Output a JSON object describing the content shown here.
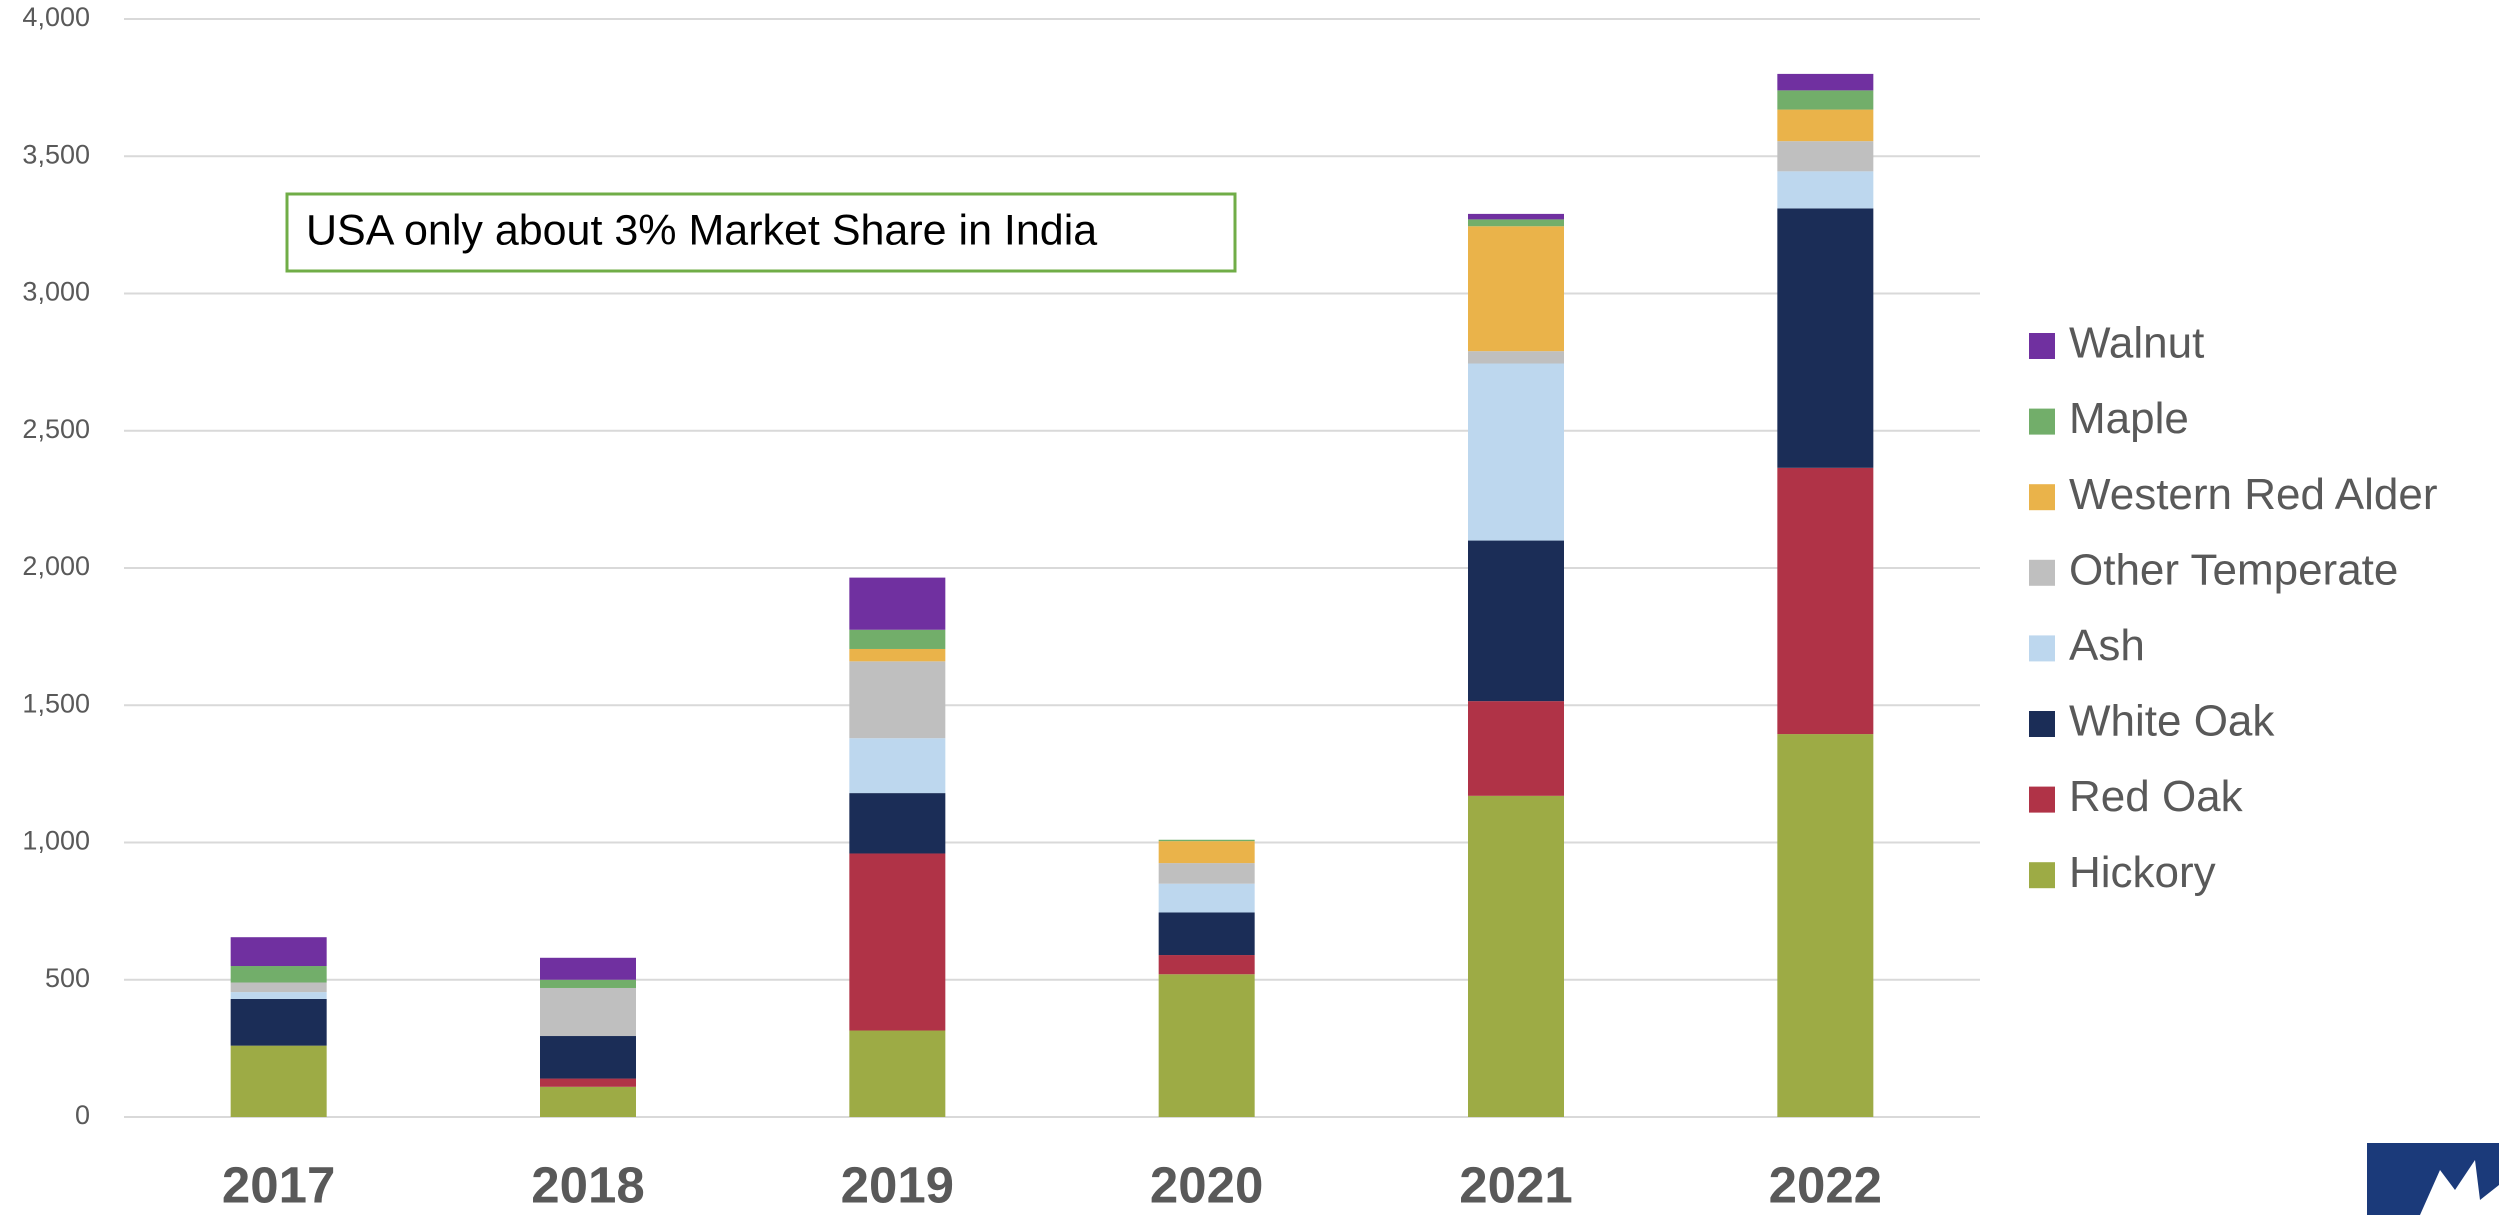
{
  "chart_data": {
    "type": "stacked_bar",
    "annotation": "USA only about 3% Market Share in India",
    "categories": [
      "2017",
      "2018",
      "2019",
      "2020",
      "2021",
      "2022"
    ],
    "series": [
      {
        "name": "Hickory",
        "color": "#9dab45",
        "values": [
          260,
          110,
          315,
          520,
          1170,
          1395
        ]
      },
      {
        "name": "Red Oak",
        "color": "#b03347",
        "values": [
          0,
          30,
          645,
          70,
          345,
          970
        ]
      },
      {
        "name": "White Oak",
        "color": "#1b2d57",
        "values": [
          170,
          155,
          220,
          155,
          585,
          945
        ]
      },
      {
        "name": "Ash",
        "color": "#bdd7ee",
        "values": [
          25,
          0,
          200,
          105,
          645,
          135
        ]
      },
      {
        "name": "Other Temperate",
        "color": "#bfbfbf",
        "values": [
          35,
          175,
          280,
          75,
          45,
          110
        ]
      },
      {
        "name": "Western Red Alder",
        "color": "#eab34a",
        "values": [
          0,
          0,
          45,
          80,
          455,
          115
        ]
      },
      {
        "name": "Maple",
        "color": "#72ae6a",
        "values": [
          60,
          30,
          70,
          5,
          25,
          70
        ]
      },
      {
        "name": "Walnut",
        "color": "#7030a0",
        "values": [
          105,
          80,
          190,
          0,
          20,
          60
        ]
      }
    ],
    "ylim": [
      0,
      4000
    ],
    "yticks": [
      0,
      500,
      {
        "value": 1000,
        "label": "1,000"
      },
      {
        "value": 1500,
        "label": "1,500"
      },
      {
        "value": 2000,
        "label": "2,000"
      },
      {
        "value": 2500,
        "label": "2,500"
      },
      {
        "value": 3000,
        "label": "3,000"
      },
      {
        "value": 3500,
        "label": "3,500"
      },
      {
        "value": 4000,
        "label": "4,000"
      }
    ],
    "grid": true,
    "legend": "right"
  }
}
